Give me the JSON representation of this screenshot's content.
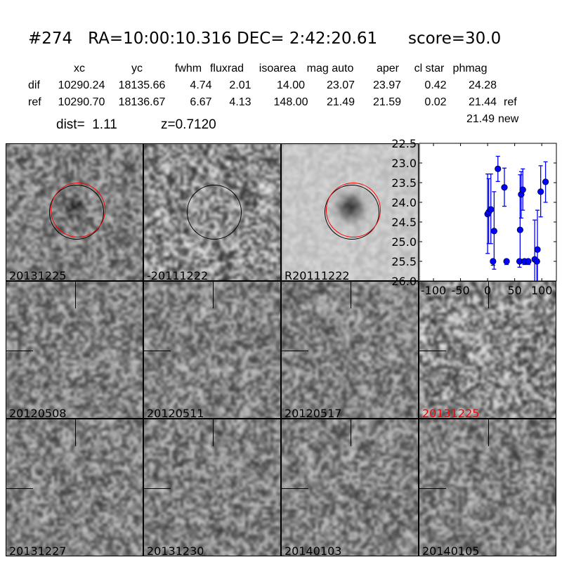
{
  "title": "#274   RA=10:00:10.316 DEC= 2:42:20.61      score=30.0",
  "table": {
    "headers": [
      "xc",
      "yc",
      "fwhm",
      "fluxrad",
      "isoarea",
      "mag auto",
      "aper",
      "cl star",
      "phmag"
    ],
    "rows": [
      {
        "label": "dif",
        "values": [
          "10290.24",
          "18135.66",
          "4.74",
          "2.01",
          "14.00",
          "23.07",
          "23.97",
          "0.42",
          "24.28"
        ],
        "suffix": ""
      },
      {
        "label": "ref",
        "values": [
          "10290.70",
          "18136.67",
          "6.67",
          "4.13",
          "148.00",
          "21.49",
          "21.59",
          "0.02",
          "21.44"
        ],
        "suffix": "ref"
      }
    ],
    "extra": {
      "value": "21.49",
      "suffix": "new"
    },
    "dist": "dist=  1.11",
    "z": "z=0.7120"
  },
  "panels": [
    {
      "label": "20131225",
      "kind": "new",
      "circles": [
        "#000000",
        "#ff0000"
      ]
    },
    {
      "label": "-20111222",
      "kind": "diff",
      "circles": [
        "#000000"
      ]
    },
    {
      "label": "R20111222",
      "kind": "ref",
      "circles": [
        "#000000",
        "#ff0000"
      ]
    },
    {
      "label": "",
      "kind": "plot"
    },
    {
      "label": "20120508",
      "kind": "stamp"
    },
    {
      "label": "20120511",
      "kind": "stamp"
    },
    {
      "label": "20120517",
      "kind": "stamp"
    },
    {
      "label": "20131225",
      "kind": "diffstamp",
      "color": "#ff0000"
    },
    {
      "label": "20131227",
      "kind": "stamp"
    },
    {
      "label": "20131230",
      "kind": "stamp"
    },
    {
      "label": "20140103",
      "kind": "stamp"
    },
    {
      "label": "20140105",
      "kind": "stamp"
    }
  ],
  "chart_data": {
    "type": "scatter",
    "xlim": [
      -126,
      127
    ],
    "ylim": [
      26.0,
      22.5
    ],
    "y_inverted": true,
    "xticks": [
      "-100",
      "-50",
      "0",
      "50",
      "100"
    ],
    "yticks": [
      "22.5",
      "23.0",
      "23.5",
      "24.0",
      "24.5",
      "25.0",
      "25.5",
      "26.0"
    ],
    "marker_color": "#0000ff",
    "points": [
      {
        "x": 0,
        "y": 24.3,
        "lo": 23.28,
        "hi": 25.3
      },
      {
        "x": 2,
        "y": 24.25,
        "lo": 23.4,
        "hi": 25.05
      },
      {
        "x": 6,
        "y": 24.18,
        "lo": 23.28,
        "hi": 25.05
      },
      {
        "x": 10,
        "y": 25.5,
        "lo": 25.45,
        "hi": 25.6
      },
      {
        "x": 12,
        "y": 24.73,
        "lo": 23.73,
        "hi": 25.7
      },
      {
        "x": 19,
        "y": 23.15,
        "lo": 22.83,
        "hi": 23.47
      },
      {
        "x": 31,
        "y": 23.62,
        "lo": 23.13,
        "hi": 24.1
      },
      {
        "x": 35,
        "y": 25.5,
        "lo": 25.45,
        "hi": 25.58
      },
      {
        "x": 59,
        "y": 25.5,
        "lo": 25.45,
        "hi": 25.65
      },
      {
        "x": 60,
        "y": 24.7,
        "lo": 23.3,
        "hi": 25.5
      },
      {
        "x": 62,
        "y": 23.8,
        "lo": 23.22,
        "hi": 24.4
      },
      {
        "x": 65,
        "y": 23.68,
        "lo": 23.15,
        "hi": 24.2
      },
      {
        "x": 68,
        "y": 25.5,
        "lo": 25.45,
        "hi": 25.58
      },
      {
        "x": 75,
        "y": 25.5,
        "lo": 25.45,
        "hi": 25.58
      },
      {
        "x": 87,
        "y": 25.45,
        "lo": 24.45,
        "hi": 26.5
      },
      {
        "x": 91,
        "y": 25.5,
        "lo": 25.45,
        "hi": 26.5
      },
      {
        "x": 92,
        "y": 25.2,
        "lo": 24.2,
        "hi": 26.5
      },
      {
        "x": 98,
        "y": 23.73,
        "lo": 23.07,
        "hi": 24.37
      },
      {
        "x": 107,
        "y": 23.48,
        "lo": 22.97,
        "hi": 24.0
      }
    ]
  }
}
